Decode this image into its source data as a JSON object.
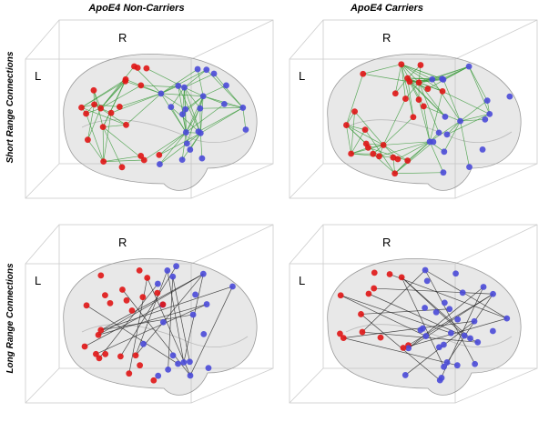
{
  "columns": [
    "ApoE4 Non-Carriers",
    "ApoE4 Carriers"
  ],
  "rows": [
    "Short Range Connections",
    "Long Range Connections"
  ],
  "panels": [
    {
      "right_label": "R",
      "left_label": "L"
    },
    {
      "right_label": "R",
      "left_label": "L"
    },
    {
      "right_label": "R",
      "left_label": "L"
    },
    {
      "right_label": "R",
      "left_label": "L"
    }
  ]
}
